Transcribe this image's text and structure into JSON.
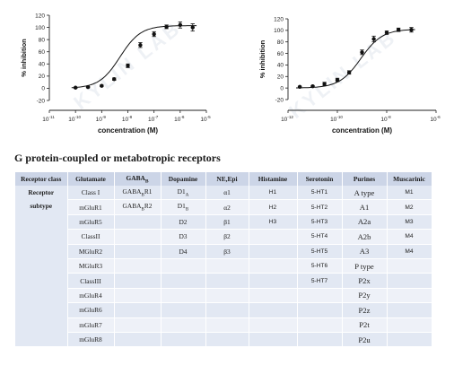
{
  "chart_data": [
    {
      "type": "scatter",
      "xscale": "log",
      "xlim": [
        1e-11,
        1e-05
      ],
      "ylim": [
        -20,
        120
      ],
      "yticks": [
        -20,
        0,
        20,
        40,
        60,
        80,
        100,
        120
      ],
      "xtick_exponents": [
        -11,
        -10,
        -9,
        -8,
        -7,
        -6,
        -5
      ],
      "xlabel": "concentration (M)",
      "ylabel": "% inhibition",
      "points": [
        {
          "x": 1e-10,
          "y": 1,
          "err": 1
        },
        {
          "x": 3e-10,
          "y": 2,
          "err": 1
        },
        {
          "x": 1e-09,
          "y": 4,
          "err": 1
        },
        {
          "x": 3e-09,
          "y": 15,
          "err": 2
        },
        {
          "x": 1e-08,
          "y": 37,
          "err": 3
        },
        {
          "x": 3e-08,
          "y": 71,
          "err": 4
        },
        {
          "x": 1e-07,
          "y": 89,
          "err": 4
        },
        {
          "x": 3e-07,
          "y": 101,
          "err": 3
        },
        {
          "x": 1e-06,
          "y": 104,
          "err": 5
        },
        {
          "x": 3e-06,
          "y": 100,
          "err": 6
        }
      ],
      "curve": {
        "bottom": 0,
        "top": 103,
        "log_ec50": -8.3,
        "hill": 1.1
      }
    },
    {
      "type": "scatter",
      "xscale": "log",
      "xlim": [
        1e-12,
        1e-06
      ],
      "ylim": [
        -20,
        120
      ],
      "yticks": [
        -20,
        0,
        20,
        40,
        60,
        80,
        100,
        120
      ],
      "xtick_exponents": [
        -12,
        -10,
        -8,
        -6
      ],
      "xlabel": "concentration (M)",
      "ylabel": "% inhibition",
      "points": [
        {
          "x": 3e-12,
          "y": 2,
          "err": 1
        },
        {
          "x": 1e-11,
          "y": 3,
          "err": 1
        },
        {
          "x": 3e-11,
          "y": 7,
          "err": 3
        },
        {
          "x": 1e-10,
          "y": 14,
          "err": 3
        },
        {
          "x": 3e-10,
          "y": 27,
          "err": 3
        },
        {
          "x": 1e-09,
          "y": 62,
          "err": 4
        },
        {
          "x": 3e-09,
          "y": 85,
          "err": 5
        },
        {
          "x": 1e-08,
          "y": 96,
          "err": 3
        },
        {
          "x": 3e-08,
          "y": 101,
          "err": 3
        },
        {
          "x": 1e-07,
          "y": 101,
          "err": 4
        }
      ],
      "curve": {
        "bottom": 0,
        "top": 102,
        "log_ec50": -9.05,
        "hill": 1.0
      }
    }
  ],
  "section_title": "G protein-coupled or metabotropic receptors",
  "table": {
    "headers": {
      "receptor_class": "Receptor class",
      "glutamate": "Glutamate",
      "gaba": "GABAB",
      "dopamine": "Dopamine",
      "ne_epi": "NE,Epi",
      "histamine": "Histamine",
      "serotonin": "Serotonin",
      "purines": "Purines",
      "muscarinic": "Muscarinic"
    },
    "row_label_line1": "Receptor",
    "row_label_line2": "subtype",
    "rows": [
      {
        "glutamate": "Class I",
        "gaba": "GABABR1",
        "dopamine": "D1A",
        "ne_epi": "α1",
        "histamine": "H1",
        "serotonin": "5-HT1",
        "purines": "A type",
        "muscarinic": "M1"
      },
      {
        "glutamate": "mGluR1",
        "gaba": "GABABR2",
        "dopamine": "D1B",
        "ne_epi": "α2",
        "histamine": "H2",
        "serotonin": "5-HT2",
        "purines": "A1",
        "muscarinic": "M2"
      },
      {
        "glutamate": "mGluR5",
        "gaba": "",
        "dopamine": "D2",
        "ne_epi": "β1",
        "histamine": "H3",
        "serotonin": "5-HT3",
        "purines": "A2a",
        "muscarinic": "M3"
      },
      {
        "glutamate": "ClassII",
        "gaba": "",
        "dopamine": "D3",
        "ne_epi": "β2",
        "histamine": "",
        "serotonin": "5-HT4",
        "purines": "A2b",
        "muscarinic": "M4"
      },
      {
        "glutamate": "MGluR2",
        "gaba": "",
        "dopamine": "D4",
        "ne_epi": "β3",
        "histamine": "",
        "serotonin": "5-HT5",
        "purines": "A3",
        "muscarinic": "M4"
      },
      {
        "glutamate": "MGluR3",
        "gaba": "",
        "dopamine": "",
        "ne_epi": "",
        "histamine": "",
        "serotonin": "5-HT6",
        "purines": "P type",
        "muscarinic": ""
      },
      {
        "glutamate": "ClassIII",
        "gaba": "",
        "dopamine": "",
        "ne_epi": "",
        "histamine": "",
        "serotonin": "5-HT7",
        "purines": "P2x",
        "muscarinic": ""
      },
      {
        "glutamate": "mGluR4",
        "gaba": "",
        "dopamine": "",
        "ne_epi": "",
        "histamine": "",
        "serotonin": "",
        "purines": "P2y",
        "muscarinic": ""
      },
      {
        "glutamate": "mGluR6",
        "gaba": "",
        "dopamine": "",
        "ne_epi": "",
        "histamine": "",
        "serotonin": "",
        "purines": "P2z",
        "muscarinic": ""
      },
      {
        "glutamate": "mGluR7",
        "gaba": "",
        "dopamine": "",
        "ne_epi": "",
        "histamine": "",
        "serotonin": "",
        "purines": "P2t",
        "muscarinic": ""
      },
      {
        "glutamate": "mGluR8",
        "gaba": "",
        "dopamine": "",
        "ne_epi": "",
        "histamine": "",
        "serotonin": "",
        "purines": "P2u",
        "muscarinic": ""
      }
    ]
  },
  "watermark": "KYLIN LAB",
  "colors": {
    "header_bg": "#ccd5e7",
    "row_odd": "#e2e8f3",
    "row_even": "#eef1f8"
  }
}
